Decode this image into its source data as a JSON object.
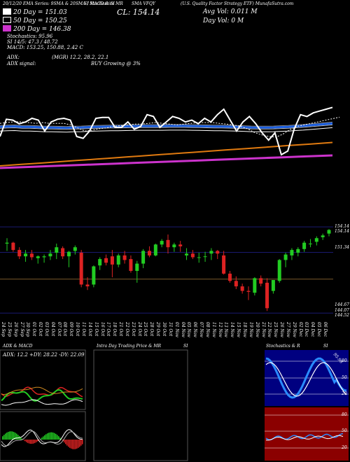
{
  "header": {
    "line1_left": "20/12/20 EMA Series: 9SMA & 20SMA / MACD & SI",
    "line1_stoch": "SI Stochastics MR",
    "line1_sma": "SMA VFQY",
    "line1_company": "(U.S. Quality Factor Strategy ETF) MunafaSutra.com",
    "ma20": "20 Day = 151.03",
    "ma50": "50 Day = 150.25",
    "ma200": "200 Day = 146.38",
    "cl": "CL: 154.14",
    "avg_vol": "Avg Vol: 0.011 M",
    "day_vol": "Day Vol: 0   M",
    "stochastics": "Stochastics: 95.96",
    "si": "SI 14/5: 47.3 / 48.72",
    "macd": "MACD: 153.25,  150.88,  2.42   C",
    "adx": "ADX:",
    "adx_values": "(MGR) 12.2,  28.2,  22.1",
    "adx_signal": "ADX  signal:",
    "buy_signal": "BUY Growing @ 3%",
    "colors": {
      "ma20": "#ffffff",
      "ma50": "#ffffff",
      "ma200": "#cc33cc"
    }
  },
  "price_axis_labels": [
    "154.14",
    "154.14",
    "151.34",
    "144.67",
    "144.07",
    "144.52"
  ],
  "date_labels": [
    "24 Sep",
    "25 Sep",
    "26 Sep",
    "27 Sep",
    "30 Sep",
    "01 Oct",
    "02 Oct",
    "03 Oct",
    "04 Oct",
    "07 Oct",
    "08 Oct",
    "09 Oct",
    "10 Oct",
    "11 Oct",
    "14 Oct",
    "15 Oct",
    "16 Oct",
    "17 Oct",
    "18 Oct",
    "21 Oct",
    "22 Oct",
    "23 Oct",
    "24 Oct",
    "25 Oct",
    "28 Oct",
    "29 Oct",
    "30 Oct",
    "31 Oct",
    "01 Nov",
    "04 Nov",
    "05 Nov",
    "06 Nov",
    "07 Nov",
    "08 Nov",
    "11 Nov",
    "12 Nov",
    "13 Nov",
    "14 Nov",
    "15 Nov",
    "18 Nov",
    "19 Nov",
    "20 Nov",
    "21 Nov",
    "22 Nov",
    "25 Nov",
    "26 Nov",
    "27 Nov",
    "29 Nov",
    "02 Dec",
    "03 Dec",
    "04 Dec",
    "05 Dec",
    "06 Dec"
  ],
  "panels": {
    "adx_macd_title": "ADX  & MACD",
    "adx_readout": "ADX: 12.2  +DY: 28.22  -DY: 22.09",
    "intraday_title": "Intra Day Trading Price  & MR",
    "intraday_si": "SI",
    "stoch_title": "Stochastics & R",
    "stoch_si": "SI",
    "stoch_levels": [
      "80",
      "50",
      "20"
    ],
    "si_levels": [
      "80",
      "50",
      "20"
    ],
    "stoch_value": "95.96"
  },
  "chart_data": {
    "type": "candlestick",
    "x": [
      "24 Sep",
      "25 Sep",
      "26 Sep",
      "27 Sep",
      "30 Sep",
      "01 Oct",
      "02 Oct",
      "03 Oct",
      "04 Oct",
      "07 Oct",
      "08 Oct",
      "09 Oct",
      "10 Oct",
      "11 Oct",
      "14 Oct",
      "15 Oct",
      "16 Oct",
      "17 Oct",
      "18 Oct",
      "21 Oct",
      "22 Oct",
      "23 Oct",
      "24 Oct",
      "25 Oct",
      "28 Oct",
      "29 Oct",
      "30 Oct",
      "31 Oct",
      "01 Nov",
      "04 Nov",
      "05 Nov",
      "06 Nov",
      "07 Nov",
      "08 Nov",
      "11 Nov",
      "12 Nov",
      "13 Nov",
      "14 Nov",
      "15 Nov",
      "18 Nov",
      "19 Nov",
      "20 Nov",
      "21 Nov",
      "22 Nov",
      "25 Nov",
      "26 Nov",
      "27 Nov",
      "29 Nov",
      "02 Dec",
      "03 Dec",
      "04 Dec",
      "05 Dec",
      "06 Dec"
    ],
    "ohlc": [
      [
        152.3,
        152.9,
        151.5,
        152.4
      ],
      [
        152.4,
        152.5,
        151.4,
        151.6
      ],
      [
        151.6,
        151.9,
        150.6,
        150.9
      ],
      [
        150.9,
        151.6,
        150.3,
        151.2
      ],
      [
        151.2,
        151.6,
        150.5,
        150.8
      ],
      [
        150.7,
        151.0,
        150.1,
        150.9
      ],
      [
        150.8,
        151.1,
        150.2,
        150.9
      ],
      [
        150.9,
        151.6,
        150.5,
        151.2
      ],
      [
        151.3,
        152.3,
        150.6,
        151.9
      ],
      [
        151.8,
        152.0,
        150.6,
        150.9
      ],
      [
        150.9,
        151.5,
        149.7,
        151.4
      ],
      [
        151.5,
        152.1,
        151.1,
        151.9
      ],
      [
        151.3,
        151.6,
        147.5,
        147.8
      ],
      [
        147.8,
        148.6,
        147.2,
        147.6
      ],
      [
        147.8,
        149.9,
        147.5,
        149.8
      ],
      [
        149.9,
        150.8,
        149.4,
        150.6
      ],
      [
        150.7,
        151.1,
        149.9,
        150.2
      ],
      [
        150.9,
        151.6,
        148.6,
        150.0
      ],
      [
        150.0,
        151.2,
        149.7,
        151.0
      ],
      [
        151.0,
        151.5,
        150.1,
        150.5
      ],
      [
        150.6,
        151.0,
        149.1,
        149.3
      ],
      [
        149.3,
        150.4,
        148.0,
        150.1
      ],
      [
        150.1,
        151.7,
        149.6,
        151.5
      ],
      [
        151.5,
        152.0,
        150.8,
        151.0
      ],
      [
        151.0,
        152.3,
        150.9,
        152.2
      ],
      [
        152.2,
        152.8,
        151.9,
        152.6
      ],
      [
        152.7,
        153.3,
        151.2,
        151.9
      ],
      [
        151.9,
        152.4,
        151.4,
        152.2
      ],
      [
        152.2,
        152.6,
        151.4,
        152.0
      ],
      [
        151.0,
        151.8,
        150.5,
        151.2
      ],
      [
        151.2,
        151.6,
        150.6,
        150.8
      ],
      [
        150.8,
        151.3,
        150.2,
        150.8
      ],
      [
        150.9,
        151.4,
        150.3,
        150.9
      ],
      [
        151.2,
        151.8,
        150.5,
        151.5
      ],
      [
        151.5,
        151.6,
        150.6,
        151.2
      ],
      [
        151.0,
        151.5,
        148.9,
        149.0
      ],
      [
        149.0,
        149.3,
        148.0,
        148.2
      ],
      [
        148.2,
        148.7,
        147.3,
        147.6
      ],
      [
        147.6,
        147.9,
        146.8,
        147.1
      ],
      [
        147.1,
        147.6,
        146.1,
        147.0
      ],
      [
        146.9,
        148.6,
        146.6,
        148.5
      ],
      [
        148.5,
        148.8,
        147.6,
        147.9
      ],
      [
        148.0,
        148.5,
        144.9,
        145.2
      ],
      [
        147.1,
        148.3,
        146.8,
        148.3
      ],
      [
        148.2,
        150.6,
        148.0,
        150.5
      ],
      [
        150.5,
        151.3,
        149.7,
        151.1
      ],
      [
        151.0,
        151.8,
        150.5,
        151.6
      ],
      [
        151.3,
        151.9,
        150.9,
        151.7
      ],
      [
        151.7,
        152.6,
        151.4,
        152.4
      ],
      [
        152.3,
        152.8,
        151.9,
        152.3
      ],
      [
        152.5,
        153.1,
        152.1,
        152.9
      ],
      [
        153.0,
        153.4,
        152.7,
        153.2
      ],
      [
        153.4,
        153.9,
        153.1,
        153.8
      ]
    ],
    "ylim": [
      144.3,
      154.3
    ],
    "reference_lines": [
      154.14,
      151.34,
      148.4,
      144.67
    ],
    "overlay_lines": {
      "price": [
        0.0,
        0.95,
        0.9,
        0.7,
        0.8,
        1.0,
        0.9,
        0.3,
        0.8,
        0.95,
        1.0,
        0.9,
        0.0,
        -0.1,
        0.3,
        1.0,
        1.05,
        1.05,
        0.5,
        0.5,
        0.8,
        0.4,
        0.55,
        1.2,
        1.1,
        0.5,
        0.8,
        1.1,
        1.0,
        0.8,
        0.9,
        0.7,
        1.0,
        0.8,
        1.2,
        1.5,
        0.9,
        0.3,
        0.8,
        1.1,
        0.7,
        0.2,
        -0.2,
        0.2,
        -1.0,
        -0.8,
        0.4,
        1.2,
        1.1,
        1.3,
        1.4,
        1.5,
        1.6
      ],
      "ma_fast": [
        0.9,
        0.95,
        1.0,
        1.0,
        0.95,
        0.9,
        0.95,
        0.9,
        0.9,
        0.9,
        0.8,
        0.6,
        0.4,
        0.45,
        0.55,
        0.6,
        0.7,
        0.75,
        0.8,
        0.85,
        0.85,
        0.9,
        0.95,
        0.9,
        0.85,
        0.8,
        0.85,
        0.9,
        0.95,
        0.95,
        0.95,
        0.9,
        0.85,
        0.8,
        0.7,
        0.55,
        0.3,
        0.15,
        0.05,
        0.0,
        0.2,
        0.5,
        0.7,
        0.8,
        0.9,
        1.0,
        1.1,
        1.2,
        1.3
      ],
      "ma_blue": [
        0.9,
        0.92,
        0.93,
        0.9,
        0.9,
        0.88,
        0.85,
        0.85,
        0.84,
        0.83,
        0.85,
        0.86,
        0.88,
        0.9,
        0.91,
        0.92,
        0.92,
        0.93,
        0.94,
        0.95,
        0.95,
        0.95,
        0.95,
        0.96,
        0.96,
        0.96,
        0.95,
        0.94,
        0.93,
        0.92,
        0.92,
        0.91,
        0.9,
        0.88,
        0.86,
        0.85,
        0.85,
        0.86,
        0.88,
        0.9,
        0.93,
        0.96,
        1.0,
        1.04,
        1.08,
        1.12
      ],
      "ma_orange": [
        0.0,
        0.02,
        0.04,
        0.06,
        0.08,
        0.1,
        0.12,
        0.14,
        0.16,
        0.18,
        0.2,
        0.22,
        0.24,
        0.26,
        0.28,
        0.3,
        0.32,
        0.34,
        0.36,
        0.38,
        0.4,
        0.42,
        0.44,
        0.46,
        0.48,
        0.5,
        0.52,
        0.54,
        0.56,
        0.58,
        0.6,
        0.62
      ],
      "ma_magenta": [
        0.0,
        0.03,
        0.06,
        0.09,
        0.12,
        0.15,
        0.18,
        0.21,
        0.24,
        0.27,
        0.3,
        0.33,
        0.36,
        0.39,
        0.42,
        0.45,
        0.48,
        0.51,
        0.54,
        0.57,
        0.6
      ]
    }
  }
}
